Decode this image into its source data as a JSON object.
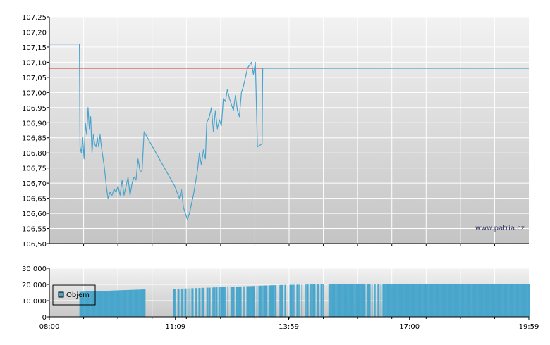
{
  "watermark": "www.patria.cz",
  "colors": {
    "price_line": "#4aa3cc",
    "reference_line": "#cc3333",
    "reference_line_tail": "#5a6f9a",
    "volume_bar": "#48a6cc",
    "grid": "#ffffff",
    "plot_top": "#f2f2f2",
    "plot_bottom": "#c4c4c4",
    "frame": "#000000"
  },
  "chart_data": [
    {
      "type": "line",
      "title": "",
      "xlabel": "",
      "ylabel": "",
      "xlim": [
        "08:00",
        "19:59"
      ],
      "ylim": [
        106.5,
        107.25
      ],
      "y_ticks": [
        "106,50",
        "106,55",
        "106,60",
        "106,65",
        "106,70",
        "106,75",
        "106,80",
        "106,85",
        "106,90",
        "106,95",
        "107,00",
        "107,05",
        "107,10",
        "107,15",
        "107,20",
        "107,25"
      ],
      "y_tick_values": [
        106.5,
        106.55,
        106.6,
        106.65,
        106.7,
        106.75,
        106.8,
        106.85,
        106.9,
        106.95,
        107.0,
        107.05,
        107.1,
        107.15,
        107.2,
        107.25
      ],
      "grid": true,
      "reference_line": {
        "value": 107.08
      },
      "series": [
        {
          "points": [
            [
              "08:00",
              107.16
            ],
            [
              "08:45",
              107.16
            ],
            [
              "08:46",
              106.82
            ],
            [
              "08:48",
              106.8
            ],
            [
              "08:50",
              106.85
            ],
            [
              "08:52",
              106.78
            ],
            [
              "08:54",
              106.9
            ],
            [
              "08:56",
              106.86
            ],
            [
              "08:58",
              106.95
            ],
            [
              "09:00",
              106.88
            ],
            [
              "09:02",
              106.92
            ],
            [
              "09:04",
              106.8
            ],
            [
              "09:06",
              106.86
            ],
            [
              "09:08",
              106.83
            ],
            [
              "09:10",
              106.82
            ],
            [
              "09:12",
              106.85
            ],
            [
              "09:14",
              106.82
            ],
            [
              "09:16",
              106.86
            ],
            [
              "09:18",
              106.82
            ],
            [
              "09:22",
              106.76
            ],
            [
              "09:26",
              106.68
            ],
            [
              "09:28",
              106.65
            ],
            [
              "09:31",
              106.67
            ],
            [
              "09:34",
              106.66
            ],
            [
              "09:37",
              106.68
            ],
            [
              "09:40",
              106.67
            ],
            [
              "09:43",
              106.69
            ],
            [
              "09:46",
              106.66
            ],
            [
              "09:49",
              106.71
            ],
            [
              "09:52",
              106.66
            ],
            [
              "09:55",
              106.69
            ],
            [
              "09:58",
              106.72
            ],
            [
              "10:01",
              106.66
            ],
            [
              "10:04",
              106.7
            ],
            [
              "10:07",
              106.72
            ],
            [
              "10:10",
              106.71
            ],
            [
              "10:13",
              106.78
            ],
            [
              "10:16",
              106.74
            ],
            [
              "10:19",
              106.74
            ],
            [
              "10:22",
              106.87
            ],
            [
              "11:08",
              106.69
            ],
            [
              "11:15",
              106.65
            ],
            [
              "11:18",
              106.68
            ],
            [
              "11:21",
              106.62
            ],
            [
              "11:24",
              106.6
            ],
            [
              "11:27",
              106.58
            ],
            [
              "11:30",
              106.6
            ],
            [
              "11:33",
              106.63
            ],
            [
              "11:36",
              106.66
            ],
            [
              "11:39",
              106.7
            ],
            [
              "11:42",
              106.74
            ],
            [
              "11:45",
              106.8
            ],
            [
              "11:48",
              106.76
            ],
            [
              "11:51",
              106.81
            ],
            [
              "11:54",
              106.78
            ],
            [
              "11:56",
              106.9
            ],
            [
              "12:00",
              106.92
            ],
            [
              "12:03",
              106.95
            ],
            [
              "12:06",
              106.87
            ],
            [
              "12:09",
              106.94
            ],
            [
              "12:12",
              106.88
            ],
            [
              "12:15",
              106.91
            ],
            [
              "12:18",
              106.89
            ],
            [
              "12:21",
              106.98
            ],
            [
              "12:24",
              106.97
            ],
            [
              "12:27",
              107.01
            ],
            [
              "12:30",
              106.98
            ],
            [
              "12:33",
              106.96
            ],
            [
              "12:36",
              106.94
            ],
            [
              "12:39",
              106.99
            ],
            [
              "12:42",
              106.94
            ],
            [
              "12:45",
              106.92
            ],
            [
              "12:48",
              107.0
            ],
            [
              "12:51",
              107.02
            ],
            [
              "12:54",
              107.05
            ],
            [
              "12:57",
              107.08
            ],
            [
              "13:00",
              107.09
            ],
            [
              "13:03",
              107.1
            ],
            [
              "13:06",
              107.06
            ],
            [
              "13:09",
              107.1
            ],
            [
              "13:12",
              106.82
            ],
            [
              "13:19",
              106.83
            ],
            [
              "13:20",
              107.08
            ],
            [
              "19:59",
              107.08
            ]
          ]
        }
      ]
    },
    {
      "type": "bar",
      "title": "",
      "xlabel": "",
      "ylabel": "",
      "xlim": [
        "08:00",
        "19:59"
      ],
      "ylim": [
        0,
        30000
      ],
      "y_ticks": [
        "0",
        "10 000",
        "20 000",
        "30 000"
      ],
      "y_tick_values": [
        0,
        10000,
        20000,
        30000
      ],
      "x_ticks": [
        "08:00",
        "11:09",
        "13:59",
        "17:00",
        "19:59"
      ],
      "grid": true,
      "legend": {
        "placement": "top-left",
        "entries": [
          "Objem"
        ]
      },
      "series": [
        {
          "name": "Objem",
          "points": [
            [
              "08:00",
              15000
            ],
            [
              "08:20",
              15200
            ],
            [
              "08:40",
              15400
            ],
            [
              "09:00",
              15700
            ],
            [
              "09:20",
              16000
            ],
            [
              "09:40",
              16300
            ],
            [
              "10:00",
              16600
            ],
            [
              "10:20",
              16900
            ],
            [
              "10:40",
              17100
            ],
            [
              "11:10",
              17300
            ],
            [
              "11:30",
              17600
            ],
            [
              "11:50",
              17900
            ],
            [
              "12:10",
              18200
            ],
            [
              "12:30",
              18500
            ],
            [
              "12:50",
              18800
            ],
            [
              "13:10",
              19100
            ],
            [
              "13:30",
              19400
            ],
            [
              "13:50",
              19700
            ],
            [
              "14:30",
              20000
            ],
            [
              "15:30",
              20000
            ],
            [
              "16:30",
              20000
            ],
            [
              "17:30",
              20000
            ],
            [
              "18:30",
              20000
            ],
            [
              "19:50",
              20000
            ]
          ]
        }
      ]
    }
  ]
}
